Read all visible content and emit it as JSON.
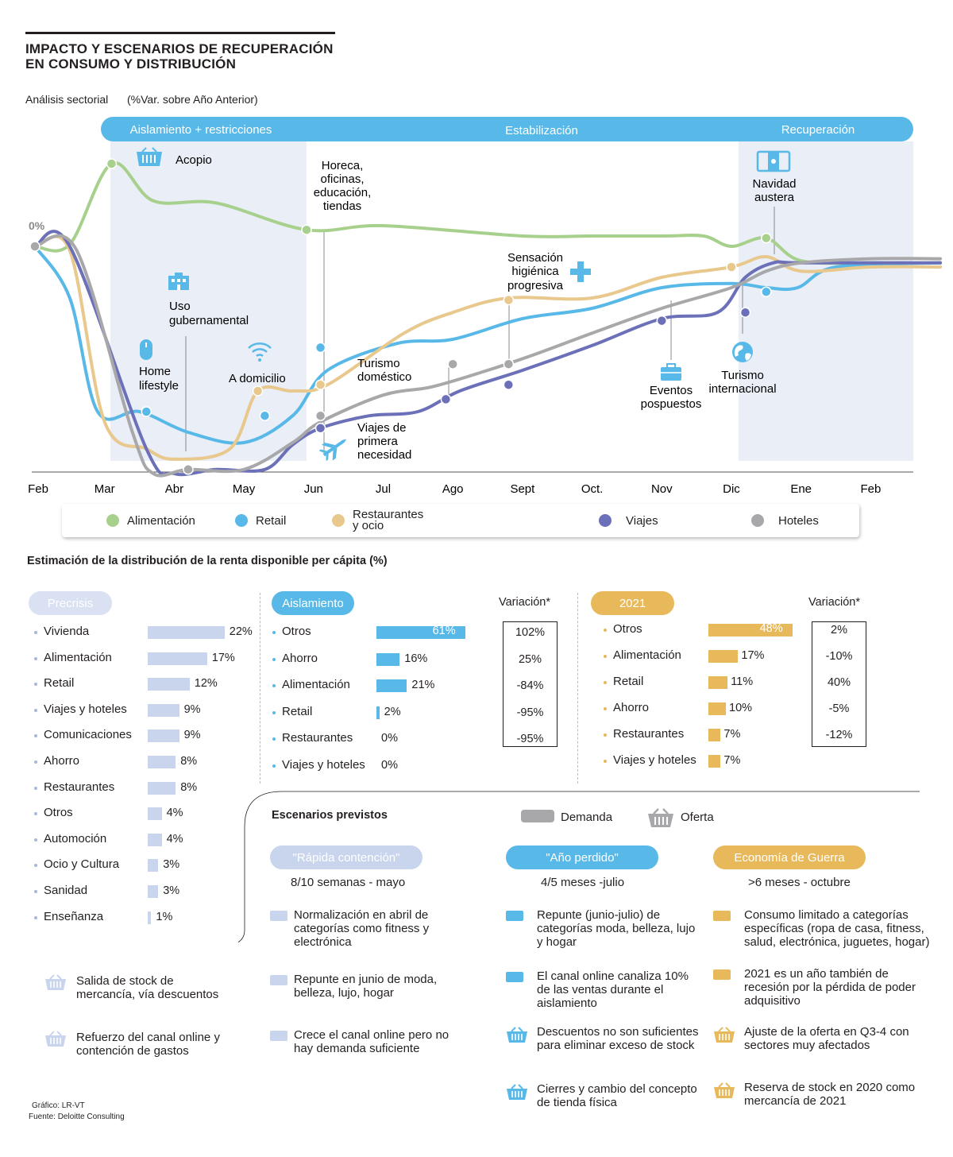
{
  "header": {
    "title_line1": "IMPACTO Y ESCENARIOS DE RECUPERACIÓN",
    "title_line2": "EN CONSUMO Y DISTRIBUCIÓN",
    "subtitle": "Análisis sectorial",
    "subtitle_unit": "(%Var. sobre Año Anterior)"
  },
  "phases": [
    "Aislamiento + restricciones",
    "Estabilización",
    "Recuperación"
  ],
  "chart_data": {
    "type": "line",
    "title": "Análisis sectorial (%Var. sobre Año Anterior)",
    "zero_label": "0%",
    "x_months": [
      "Feb",
      "Mar",
      "Abr",
      "May",
      "Jun",
      "Jul",
      "Ago",
      "Sept",
      "Oct.",
      "Nov",
      "Dic",
      "Ene",
      "Feb"
    ],
    "y_note": "relative scale, 0% = baseline; values approximate",
    "series": [
      {
        "name": "Alimentación",
        "color": "#a8d08d",
        "points": [
          [
            0,
            0
          ],
          [
            0.5,
            1
          ],
          [
            1.1,
            40
          ],
          [
            1.7,
            22
          ],
          [
            2.6,
            21
          ],
          [
            3.9,
            8
          ],
          [
            5,
            10
          ],
          [
            7,
            5
          ],
          [
            8,
            5
          ],
          [
            9,
            5
          ],
          [
            9.6,
            5
          ],
          [
            10,
            0
          ],
          [
            10.5,
            4
          ],
          [
            11,
            -7
          ],
          [
            12,
            -8
          ],
          [
            13,
            -8
          ]
        ]
      },
      {
        "name": "Retail",
        "color": "#58b9e8",
        "points": [
          [
            0,
            0
          ],
          [
            0.5,
            -25
          ],
          [
            0.9,
            -80
          ],
          [
            1.5,
            -80
          ],
          [
            2.2,
            -90
          ],
          [
            3,
            -95
          ],
          [
            3.7,
            -82
          ],
          [
            4.2,
            -60
          ],
          [
            5.2,
            -47
          ],
          [
            6,
            -45
          ],
          [
            7,
            -35
          ],
          [
            8,
            -30
          ],
          [
            9,
            -20
          ],
          [
            10,
            -18
          ],
          [
            10.5,
            -20
          ],
          [
            10.95,
            -20
          ],
          [
            11.5,
            -10
          ],
          [
            13,
            -8
          ]
        ]
      },
      {
        "name": "Restaurantes y ocio",
        "color": "#e8c88c",
        "points": [
          [
            0,
            0
          ],
          [
            0.5,
            -2
          ],
          [
            1,
            -85
          ],
          [
            1.6,
            -98
          ],
          [
            2,
            -103
          ],
          [
            2.8,
            -98
          ],
          [
            3.2,
            -70
          ],
          [
            3.7,
            -70
          ],
          [
            4.2,
            -67
          ],
          [
            5.3,
            -42
          ],
          [
            6,
            -32
          ],
          [
            6.8,
            -25
          ],
          [
            8,
            -25
          ],
          [
            9,
            -15
          ],
          [
            10,
            -10
          ],
          [
            10.5,
            -5
          ],
          [
            11,
            -12
          ],
          [
            12,
            -10
          ],
          [
            13,
            -10
          ]
        ]
      },
      {
        "name": "Viajes",
        "color": "#6b70b8",
        "points": [
          [
            0,
            0
          ],
          [
            0.5,
            0
          ],
          [
            1.6,
            -98
          ],
          [
            2,
            -110
          ],
          [
            2.6,
            -108
          ],
          [
            3.3,
            -108
          ],
          [
            3.7,
            -96
          ],
          [
            4.1,
            -88
          ],
          [
            4.8,
            -82
          ],
          [
            5.5,
            -80
          ],
          [
            6.1,
            -70
          ],
          [
            7,
            -60
          ],
          [
            8,
            -48
          ],
          [
            9,
            -35
          ],
          [
            9.8,
            -32
          ],
          [
            10.2,
            -15
          ],
          [
            10.6,
            -8
          ],
          [
            11,
            -8
          ],
          [
            13,
            -8
          ]
        ]
      },
      {
        "name": "Hoteles",
        "color": "#a8a8ab",
        "points": [
          [
            0,
            0
          ],
          [
            0.6,
            -2
          ],
          [
            1.4,
            -90
          ],
          [
            1.7,
            -110
          ],
          [
            2.2,
            -108
          ],
          [
            3,
            -108
          ],
          [
            3.7,
            -95
          ],
          [
            4.1,
            -85
          ],
          [
            5,
            -72
          ],
          [
            5.7,
            -68
          ],
          [
            6.5,
            -60
          ],
          [
            7.2,
            -52
          ],
          [
            8,
            -42
          ],
          [
            9,
            -30
          ],
          [
            10,
            -20
          ],
          [
            10.5,
            -12
          ],
          [
            11,
            -8
          ],
          [
            12,
            -6
          ],
          [
            13,
            -6
          ]
        ]
      }
    ],
    "annotations": [
      "Acopio",
      "Uso gubernamental",
      "Home lifestyle",
      "A domicilio",
      "Horeca, oficinas, educación, tiendas",
      "Turismo doméstico",
      "Viajes de primera necesidad",
      "Sensación higiénica progresiva",
      "Eventos pospuestos",
      "Turismo internacional",
      "Navidad austera"
    ]
  },
  "legend": [
    "Alimentación",
    "Retail",
    "Restaurantes y ocio",
    "Viajes",
    "Hoteles"
  ],
  "annotations": {
    "acopio": "Acopio",
    "uso1": "Uso",
    "uso2": "gubernamental",
    "home1": "Home",
    "home2": "lifestyle",
    "domicilio": "A domicilio",
    "horeca1": "Horeca,",
    "horeca2": "oficinas,",
    "horeca3": "educación,",
    "horeca4": "tiendas",
    "turdom1": "Turismo",
    "turdom2": "doméstico",
    "viajes1": "Viajes de",
    "viajes2": "primera",
    "viajes3": "necesidad",
    "sens1": "Sensación",
    "sens2": "higiénica",
    "sens3": "progresiva",
    "eventos1": "Eventos",
    "eventos2": "pospuestos",
    "turint1": "Turismo",
    "turint2": "internacional",
    "navidad1": "Navidad",
    "navidad2": "austera"
  },
  "distribution": {
    "title": "Estimación de la distribución de la renta disponible per cápita (%)",
    "precrisis": {
      "label": "Precrisis",
      "items": [
        {
          "name": "Vivienda",
          "value": 22,
          "label": "22%"
        },
        {
          "name": "Alimentación",
          "value": 17,
          "label": "17%"
        },
        {
          "name": "Retail",
          "value": 12,
          "label": "12%"
        },
        {
          "name": "Viajes y hoteles",
          "value": 9,
          "label": "9%"
        },
        {
          "name": "Comunicaciones",
          "value": 9,
          "label": "9%"
        },
        {
          "name": "Ahorro",
          "value": 8,
          "label": "8%"
        },
        {
          "name": "Restaurantes",
          "value": 8,
          "label": "8%"
        },
        {
          "name": "Otros",
          "value": 4,
          "label": "4%"
        },
        {
          "name": "Automoción",
          "value": 4,
          "label": "4%"
        },
        {
          "name": "Ocio y Cultura",
          "value": 3,
          "label": "3%"
        },
        {
          "name": "Sanidad",
          "value": 3,
          "label": "3%"
        },
        {
          "name": "Enseñanza",
          "value": 1,
          "label": "1%"
        }
      ]
    },
    "aislamiento": {
      "label": "Aislamiento",
      "variation_header": "Variación*",
      "items": [
        {
          "name": "Otros",
          "value": 61,
          "label": "61%",
          "variation": "102%"
        },
        {
          "name": "Ahorro",
          "value": 16,
          "label": "16%",
          "variation": "25%"
        },
        {
          "name": "Alimentación",
          "value": 21,
          "label": "21%",
          "variation": "-84%"
        },
        {
          "name": "Retail",
          "value": 2,
          "label": "2%",
          "variation": "-95%"
        },
        {
          "name": "Restaurantes",
          "value": 0,
          "label": "0%",
          "variation": "-95%"
        },
        {
          "name": "Viajes y hoteles",
          "value": 0,
          "label": "0%",
          "variation": ""
        }
      ]
    },
    "y2021": {
      "label": "2021",
      "variation_header": "Variación*",
      "items": [
        {
          "name": "Otros",
          "value": 48,
          "label": "48%",
          "variation": "2%"
        },
        {
          "name": "Alimentación",
          "value": 17,
          "label": "17%",
          "variation": "-10%"
        },
        {
          "name": "Retail",
          "value": 11,
          "label": "11%",
          "variation": "40%"
        },
        {
          "name": "Ahorro",
          "value": 10,
          "label": "10%",
          "variation": "-5%"
        },
        {
          "name": "Restaurantes",
          "value": 7,
          "label": "7%",
          "variation": "-12%"
        },
        {
          "name": "Viajes y hoteles",
          "value": 7,
          "label": "7%",
          "variation": ""
        }
      ]
    }
  },
  "scenarios": {
    "title": "Escenarios previstos",
    "demanda": "Demanda",
    "oferta": "Oferta",
    "left_items": [
      "Salida de stock de mercancía, vía descuentos",
      "Refuerzo del canal online y contención de gastos"
    ],
    "cols": [
      {
        "label": "\"Rápida contención\"",
        "period": "8/10 semanas - mayo",
        "color": "#c9d5ec",
        "items": [
          "Normalización en abril de categorías como fitness y electrónica",
          "Repunte en junio de moda, belleza, lujo, hogar",
          "Crece el canal online pero no hay demanda suficiente"
        ]
      },
      {
        "label": "\"Año perdido\"",
        "period": "4/5 meses -julio",
        "color": "#58b9e8",
        "items": [
          "Repunte (junio-julio) de categorías moda, belleza, lujo y hogar",
          "El canal online canaliza 10% de las ventas durante el aislamiento",
          "Descuentos no son suficientes para eliminar exceso de stock",
          "Cierres y cambio del concepto de tienda física"
        ]
      },
      {
        "label": "Economía de Guerra",
        "period": ">6 meses - octubre",
        "color": "#e8b95a",
        "items": [
          "Consumo limitado a categorías específicas (ropa de casa, fitness, salud, electrónica, juguetes, hogar)",
          "2021 es un año también de recesión por la pérdida de poder adquisitivo",
          "Ajuste de la oferta en Q3-4 con sectores muy afectados",
          "Reserva de stock en 2020 como mercancía de 2021"
        ]
      }
    ]
  },
  "credits": {
    "grafico": "Gráfico: LR-VT",
    "fuente": "Fuente: Deloitte Consulting"
  },
  "colors": {
    "alimentacion": "#a8d08d",
    "retail": "#58b9e8",
    "restaurantes": "#e8c88c",
    "viajes": "#6b70b8",
    "hoteles": "#a8a8ab",
    "band": "#e9eef7",
    "phase": "#58b9e8",
    "gold": "#e8b95a",
    "lightblue": "#c9d5ec"
  }
}
